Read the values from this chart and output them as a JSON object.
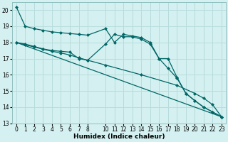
{
  "xlabel": "Humidex (Indice chaleur)",
  "bg_color": "#d4f0f0",
  "grid_color": "#b8dcdc",
  "line_color": "#006666",
  "xlim": [
    -0.5,
    23.5
  ],
  "ylim": [
    13,
    20.5
  ],
  "yticks": [
    13,
    14,
    15,
    16,
    17,
    18,
    19,
    20
  ],
  "xticks": [
    0,
    1,
    2,
    3,
    4,
    5,
    6,
    7,
    8,
    10,
    11,
    12,
    13,
    14,
    15,
    16,
    17,
    18,
    19,
    20,
    21,
    22,
    23
  ],
  "series1_x": [
    0,
    1,
    2,
    3,
    4,
    5,
    6,
    7,
    8,
    10,
    11,
    12,
    13,
    14,
    15,
    16,
    17,
    18,
    19,
    20,
    21,
    22,
    23
  ],
  "series1_y": [
    20.2,
    19.0,
    18.85,
    18.75,
    18.65,
    18.6,
    18.55,
    18.5,
    18.45,
    18.85,
    18.0,
    18.5,
    18.4,
    18.3,
    18.0,
    17.0,
    17.0,
    15.85,
    14.85,
    14.4,
    14.0,
    13.7,
    13.4
  ],
  "series2_x": [
    0,
    1,
    2,
    3,
    4,
    5,
    6,
    7,
    8,
    10,
    11,
    12,
    13,
    14,
    15,
    16,
    17,
    18,
    19,
    20,
    21,
    22,
    23
  ],
  "series2_y": [
    18.0,
    17.9,
    17.75,
    17.6,
    17.5,
    17.45,
    17.4,
    17.0,
    16.9,
    17.9,
    18.5,
    18.35,
    18.35,
    18.2,
    17.9,
    17.0,
    16.4,
    15.8,
    14.85,
    14.4,
    14.0,
    13.7,
    13.4
  ],
  "series3_x": [
    0,
    1,
    2,
    3,
    4,
    5,
    6,
    7,
    8,
    10,
    14,
    18,
    20,
    21,
    22,
    23
  ],
  "series3_y": [
    18.0,
    17.85,
    17.72,
    17.58,
    17.45,
    17.35,
    17.22,
    17.05,
    16.9,
    16.6,
    16.0,
    15.35,
    14.85,
    14.55,
    14.15,
    13.4
  ],
  "series4_x": [
    0,
    23
  ],
  "series4_y": [
    18.0,
    13.4
  ]
}
